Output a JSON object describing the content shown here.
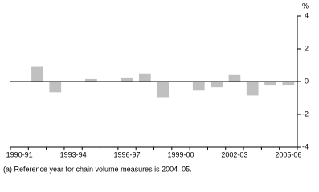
{
  "chart_data": {
    "type": "bar",
    "categories": [
      "1990-91",
      null,
      null,
      "1993-94",
      null,
      null,
      "1996-97",
      null,
      null,
      "1999-00",
      null,
      null,
      "2002-03",
      null,
      null,
      "2005-06"
    ],
    "values": [
      0,
      0.9,
      -0.65,
      0,
      0.15,
      0,
      0.25,
      0.5,
      -0.95,
      0,
      -0.55,
      -0.35,
      0.4,
      -0.85,
      -0.2,
      -0.2
    ],
    "color": "#c0c0c0",
    "y_axis_label": "%",
    "ylim": [
      -4,
      4
    ],
    "yticks": [
      -4,
      -2,
      0,
      2,
      4
    ],
    "footnote": "(a) Reference year for chain volume measures is 2004–05."
  }
}
